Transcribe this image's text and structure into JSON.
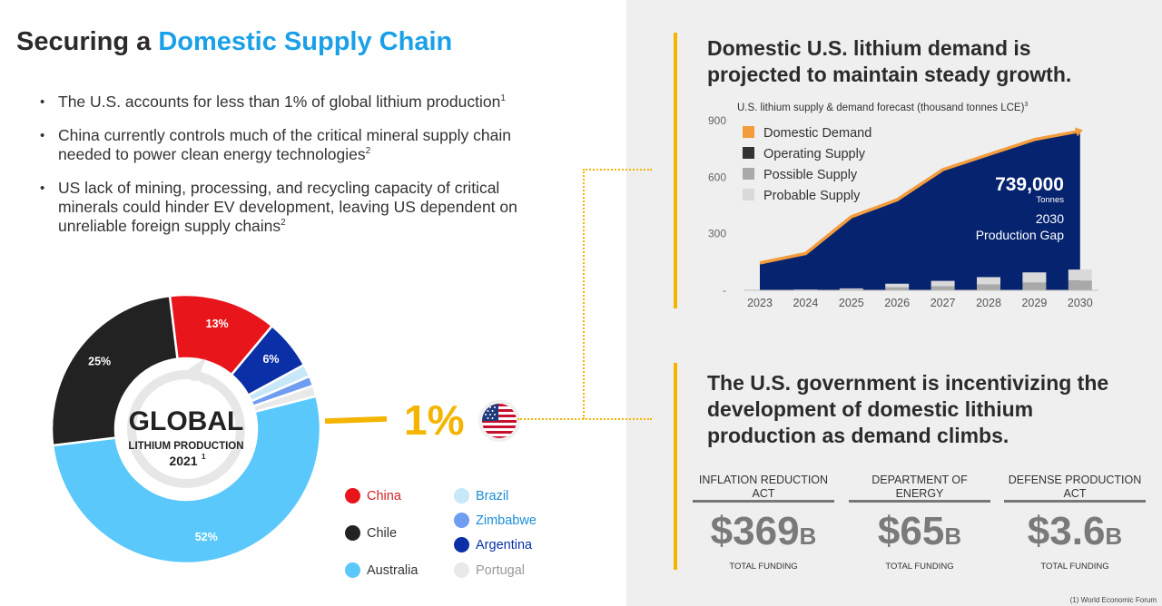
{
  "left": {
    "title_prefix": "Securing a ",
    "title_accent": "Domestic Supply Chain",
    "bullets": [
      {
        "text": "The U.S. accounts for less than 1% of global lithium production",
        "sup": "1"
      },
      {
        "text": "China currently controls much of the critical mineral supply chain needed to power clean energy technologies",
        "sup": "2"
      },
      {
        "text": "US lack of mining, processing, and recycling capacity of critical minerals could hinder EV development, leaving US dependent on unreliable foreign supply chains",
        "sup": "2"
      }
    ],
    "donut_center": {
      "big": "GLOBAL",
      "line2": "LITHIUM PRODUCTION",
      "year": "2021",
      "year_sup": "1"
    },
    "us_callout": "1%"
  },
  "donut_data": {
    "type": "pie",
    "slices": [
      {
        "name": "China",
        "value": 13,
        "label": "13%",
        "color": "#e8161b"
      },
      {
        "name": "Argentina",
        "value": 6,
        "label": "6%",
        "color": "#0a2fa6"
      },
      {
        "name": "Brazil",
        "value": 1.5,
        "label": "",
        "color": "#c6e8f8"
      },
      {
        "name": "Zimbabwe",
        "value": 1.2,
        "label": "",
        "color": "#6f9df2"
      },
      {
        "name": "Portugal",
        "value": 1.3,
        "label": "",
        "color": "#e9e9e9"
      },
      {
        "name": "Australia",
        "value": 52,
        "label": "52%",
        "color": "#5ac8fa"
      },
      {
        "name": "Chile",
        "value": 25,
        "label": "25%",
        "color": "#222222"
      }
    ],
    "legend": [
      {
        "name": "China",
        "color": "#e8161b",
        "text_color": "#d42020"
      },
      {
        "name": "Chile",
        "color": "#222222",
        "text_color": "#333333"
      },
      {
        "name": "Australia",
        "color": "#5ac8fa",
        "text_color": "#333333"
      },
      {
        "name": "Brazil",
        "color": "#c6e8f8",
        "text_color": "#1a8fd6"
      },
      {
        "name": "Zimbabwe",
        "color": "#6f9df2",
        "text_color": "#1a8fd6"
      },
      {
        "name": "Argentina",
        "color": "#0a2fa6",
        "text_color": "#0a2fa6"
      },
      {
        "name": "Portugal",
        "color": "#e9e9e9",
        "text_color": "#999999"
      }
    ]
  },
  "right": {
    "section1_title": [
      "Domestic U.S. lithium demand is",
      "projected to maintain steady growth."
    ],
    "chart_caption": "U.S. lithium supply & demand forecast (thousand tonnes LCE)",
    "chart_caption_sup": "3",
    "gap_value": "739,000",
    "gap_unit": "Tonnes",
    "gap_line1": "2030",
    "gap_line2": "Production Gap",
    "section2_title": [
      "The U.S. government is incentivizing the",
      "development of domestic lithium",
      "production as demand climbs."
    ],
    "funding": [
      {
        "name": "INFLATION REDUCTION ACT",
        "amount": "$369",
        "unit": "B",
        "sub": "TOTAL FUNDING"
      },
      {
        "name": "DEPARTMENT OF ENERGY",
        "amount": "$65",
        "unit": "B",
        "sub": "TOTAL FUNDING"
      },
      {
        "name": "DEFENSE PRODUCTION ACT",
        "amount": "$3.6",
        "unit": "B",
        "sub": "TOTAL FUNDING"
      }
    ],
    "footnote": "(1) World Economic Forum"
  },
  "chart_data": {
    "type": "area",
    "title": "U.S. lithium supply & demand forecast (thousand tonnes LCE)",
    "x": [
      "2023",
      "2024",
      "2025",
      "2026",
      "2027",
      "2028",
      "2029",
      "2030"
    ],
    "y_ticks": [
      "900",
      "600",
      "300",
      "-"
    ],
    "ylim": [
      0,
      900
    ],
    "legend_position": "top-left",
    "series": [
      {
        "name": "Domestic Demand",
        "color": "#f39c3c",
        "values": [
          145,
          195,
          390,
          480,
          640,
          720,
          800,
          845
        ]
      },
      {
        "name": "Operating Supply",
        "color": "#333333",
        "values": [
          0,
          0,
          0,
          0,
          0,
          0,
          0,
          0
        ]
      },
      {
        "name": "Possible Supply",
        "color": "#a9a9a9",
        "values": [
          0,
          2,
          5,
          15,
          20,
          30,
          40,
          52
        ]
      },
      {
        "name": "Probable Supply",
        "color": "#d9d9d9",
        "values": [
          0,
          2,
          5,
          20,
          30,
          40,
          55,
          58
        ]
      }
    ],
    "fill_color": "#06236f"
  }
}
